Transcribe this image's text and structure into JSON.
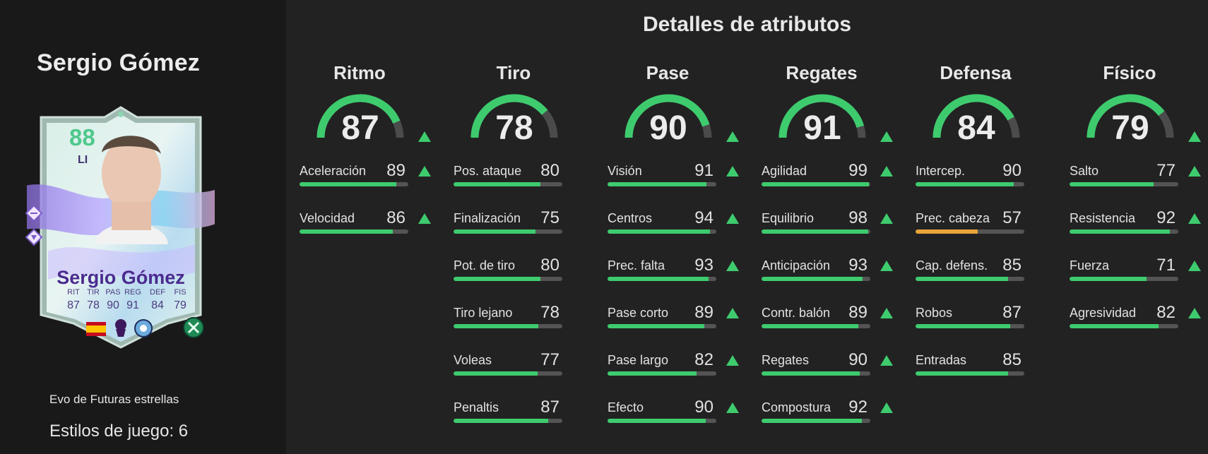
{
  "player": {
    "name": "Sergio Gómez",
    "evo_label": "Evo de Futuras estrellas",
    "playstyles_label": "Estilos de juego: 6"
  },
  "card": {
    "rating": "88",
    "position": "LI",
    "name": "Sergio Gómez",
    "stats": [
      {
        "label": "RIT",
        "value": "87"
      },
      {
        "label": "TIR",
        "value": "78"
      },
      {
        "label": "PAS",
        "value": "90"
      },
      {
        "label": "REG",
        "value": "91"
      },
      {
        "label": "DEF",
        "value": "84"
      },
      {
        "label": "FIS",
        "value": "79"
      }
    ],
    "icons": [
      "spain-flag-icon",
      "premier-league-icon",
      "manchester-city-crest-icon",
      "evolution-badge-icon"
    ]
  },
  "main": {
    "title": "Detalles de atributos"
  },
  "colors": {
    "good": "#3ecb6e",
    "mid": "#e9a33a",
    "track": "#545454"
  },
  "categories": [
    {
      "title": "Ritmo",
      "value": "87",
      "arrow": true,
      "attrs": [
        {
          "label": "Aceleración",
          "value": "89",
          "arrow": true
        },
        {
          "label": "Velocidad",
          "value": "86",
          "arrow": true
        }
      ]
    },
    {
      "title": "Tiro",
      "value": "78",
      "arrow": false,
      "attrs": [
        {
          "label": "Pos. ataque",
          "value": "80",
          "arrow": false
        },
        {
          "label": "Finalización",
          "value": "75",
          "arrow": false
        },
        {
          "label": "Pot. de tiro",
          "value": "80",
          "arrow": false
        },
        {
          "label": "Tiro lejano",
          "value": "78",
          "arrow": false
        },
        {
          "label": "Voleas",
          "value": "77",
          "arrow": false
        },
        {
          "label": "Penaltis",
          "value": "87",
          "arrow": false
        }
      ]
    },
    {
      "title": "Pase",
      "value": "90",
      "arrow": true,
      "attrs": [
        {
          "label": "Visión",
          "value": "91",
          "arrow": true
        },
        {
          "label": "Centros",
          "value": "94",
          "arrow": true
        },
        {
          "label": "Prec. falta",
          "value": "93",
          "arrow": true
        },
        {
          "label": "Pase corto",
          "value": "89",
          "arrow": true
        },
        {
          "label": "Pase largo",
          "value": "82",
          "arrow": true
        },
        {
          "label": "Efecto",
          "value": "90",
          "arrow": true
        }
      ]
    },
    {
      "title": "Regates",
      "value": "91",
      "arrow": true,
      "attrs": [
        {
          "label": "Agilidad",
          "value": "99",
          "arrow": true
        },
        {
          "label": "Equilibrio",
          "value": "98",
          "arrow": true
        },
        {
          "label": "Anticipación",
          "value": "93",
          "arrow": true
        },
        {
          "label": "Contr. balón",
          "value": "89",
          "arrow": true
        },
        {
          "label": "Regates",
          "value": "90",
          "arrow": true
        },
        {
          "label": "Compostura",
          "value": "92",
          "arrow": true
        }
      ]
    },
    {
      "title": "Defensa",
      "value": "84",
      "arrow": false,
      "attrs": [
        {
          "label": "Intercep.",
          "value": "90",
          "arrow": false
        },
        {
          "label": "Prec. cabeza",
          "value": "57",
          "arrow": false
        },
        {
          "label": "Cap. defens.",
          "value": "85",
          "arrow": false
        },
        {
          "label": "Robos",
          "value": "87",
          "arrow": false
        },
        {
          "label": "Entradas",
          "value": "85",
          "arrow": false
        }
      ]
    },
    {
      "title": "Físico",
      "value": "79",
      "arrow": true,
      "attrs": [
        {
          "label": "Salto",
          "value": "77",
          "arrow": true
        },
        {
          "label": "Resistencia",
          "value": "92",
          "arrow": true
        },
        {
          "label": "Fuerza",
          "value": "71",
          "arrow": true
        },
        {
          "label": "Agresividad",
          "value": "82",
          "arrow": true
        }
      ]
    }
  ]
}
